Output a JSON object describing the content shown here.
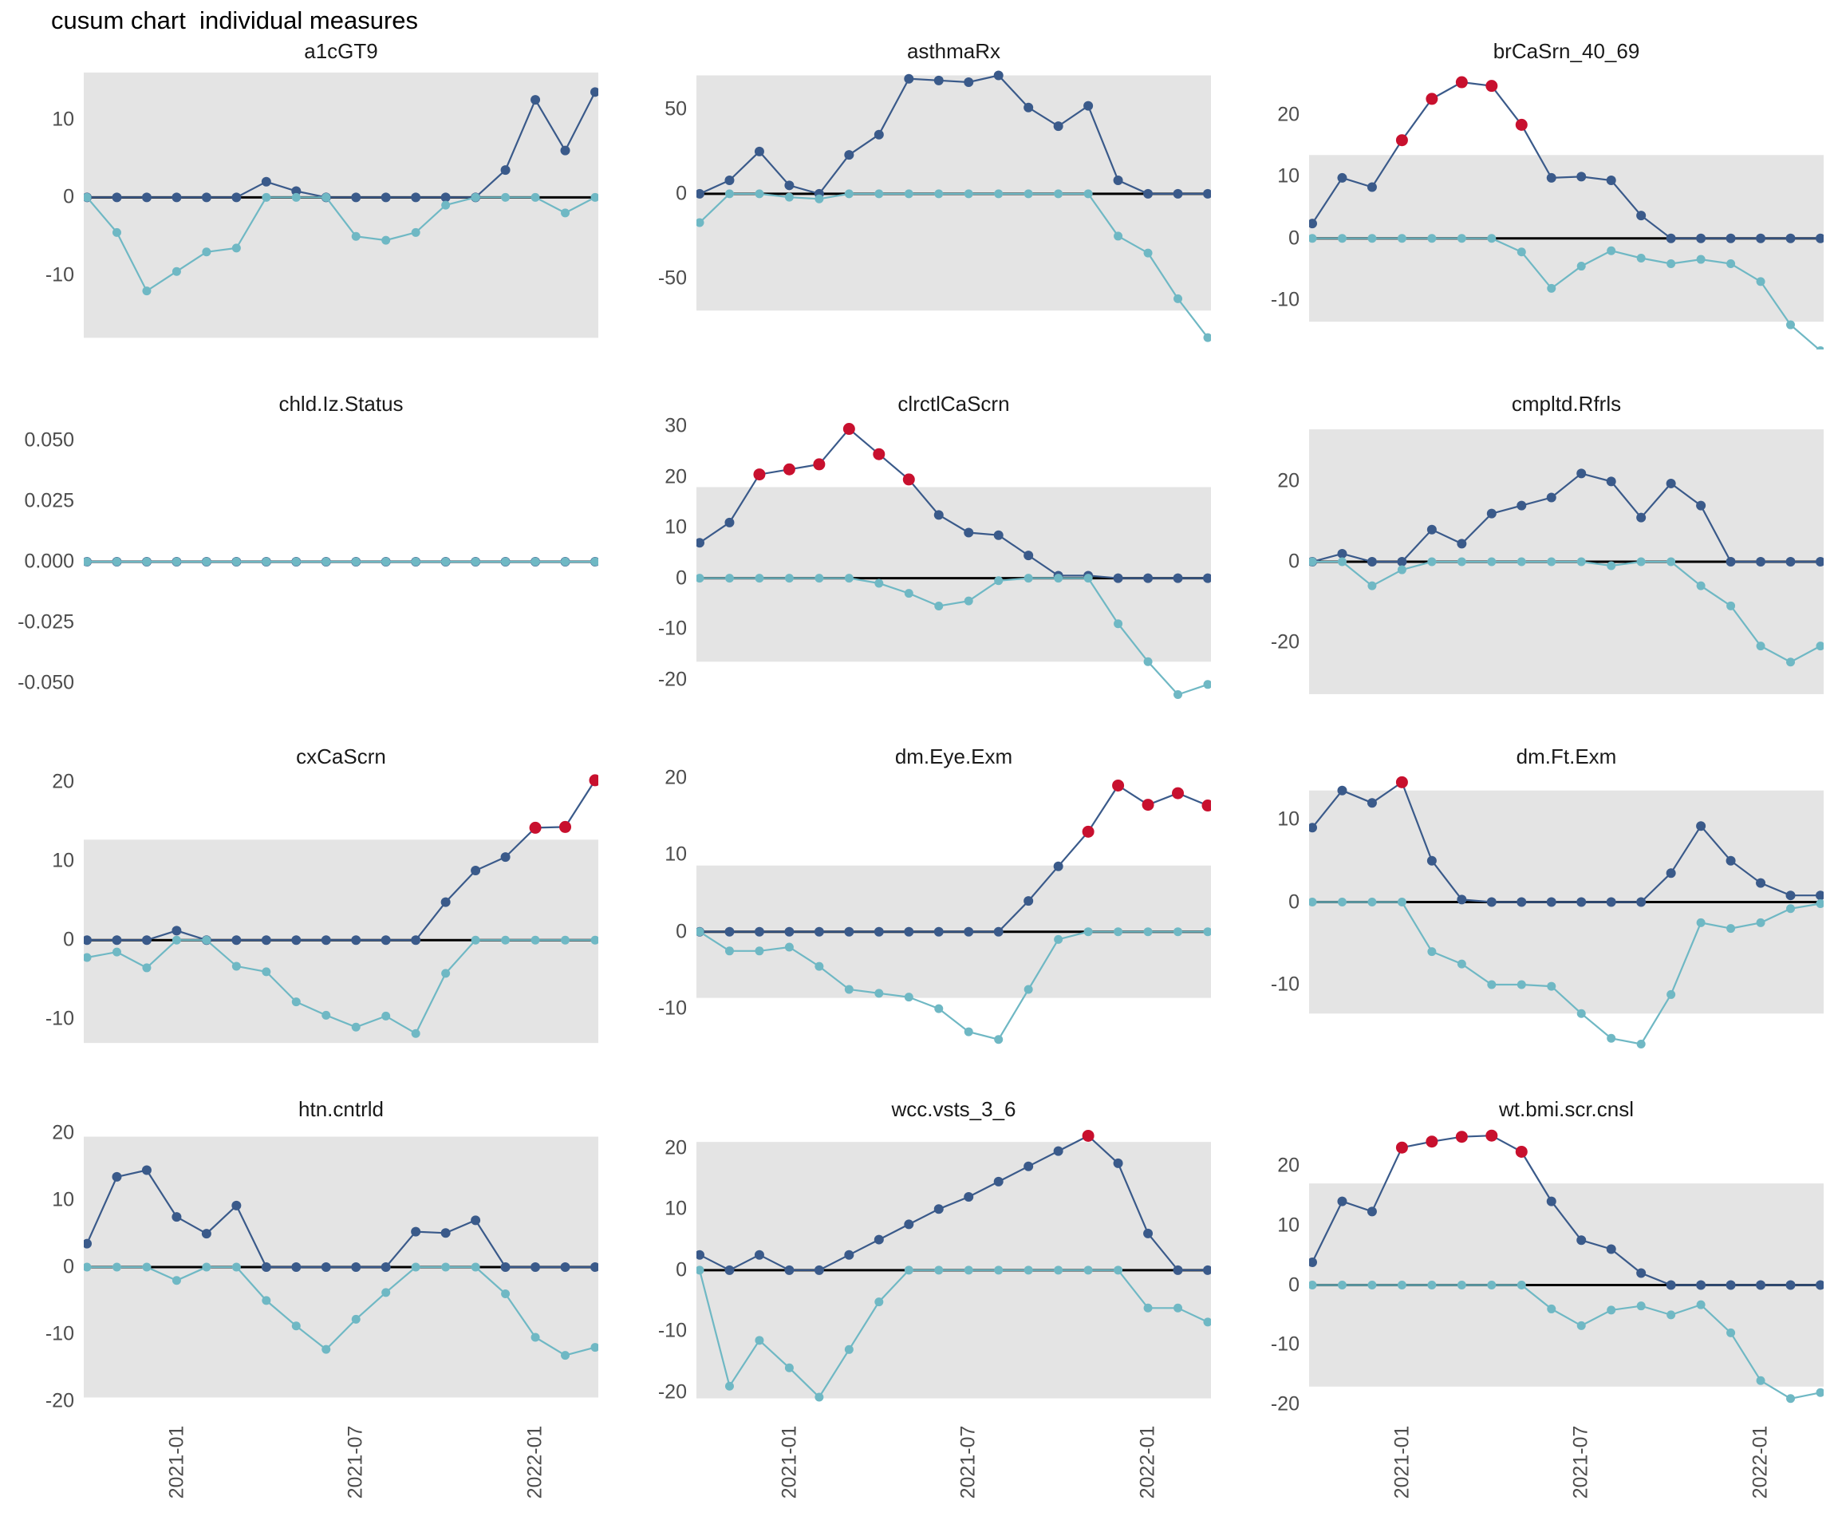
{
  "title": "cusum chart  individual measures",
  "colors": {
    "pos_line": "#3a5a8a",
    "neg_line": "#6fb8c4",
    "signal": "#c8102e",
    "band": "#e4e4e4",
    "zero_line": "#000000",
    "tick_label": "#4d4d4d",
    "facet_title": "#1a1a1a"
  },
  "x_axis": {
    "tick_labels": [
      "2021-01",
      "2021-07",
      "2022-01"
    ],
    "tick_indices": [
      3,
      9,
      15
    ]
  },
  "chart_data": {
    "type": "line",
    "n_points": 18,
    "layout": "4 rows x 3 columns facet grid, x axis labels only on bottom row",
    "series_names": [
      "cusum positive deviations (navy)",
      "cusum negative deviations (teal)",
      "signal points (red)"
    ],
    "panels": [
      {
        "title": "a1cGT9",
        "y_tick_labels": [
          "10",
          "0",
          "-10"
        ],
        "ylim": [
          -19.5,
          16.5
        ],
        "band": [
          -18,
          16
        ],
        "pos": [
          0,
          0,
          0,
          0,
          0,
          0,
          2,
          0.8,
          0,
          0,
          0,
          0,
          0,
          0,
          3.5,
          12.5,
          6,
          13.5
        ],
        "neg": [
          0,
          -4.5,
          -12,
          -9.5,
          -7,
          -6.5,
          0,
          0,
          0,
          -5,
          -5.5,
          -4.5,
          -1,
          0,
          0,
          0,
          -2,
          0
        ],
        "signals": []
      },
      {
        "title": "asthmaRx",
        "y_tick_labels": [
          "50",
          "0",
          "-50"
        ],
        "ylim": [
          -92,
          74
        ],
        "band": [
          -69,
          70
        ],
        "pos": [
          0,
          8,
          25,
          5,
          0,
          23,
          35,
          68,
          67,
          66,
          70,
          51,
          40,
          52,
          8,
          0,
          0,
          0
        ],
        "neg": [
          -17,
          0,
          0,
          -2,
          -3,
          0,
          0,
          0,
          0,
          0,
          0,
          0,
          0,
          0,
          -25,
          -35,
          -62,
          -85
        ],
        "signals": []
      },
      {
        "title": "brCaSrn_40_69",
        "y_tick_labels": [
          "20",
          "10",
          "0",
          "-10"
        ],
        "ylim": [
          -18,
          27.5
        ],
        "band": [
          -13.5,
          13.5
        ],
        "pos": [
          2.4,
          9.8,
          8.3,
          15.9,
          22.6,
          25.3,
          24.7,
          18.4,
          9.8,
          10,
          9.4,
          3.7,
          0,
          0,
          0,
          0,
          0,
          0
        ],
        "neg": [
          0,
          0,
          0,
          0,
          0,
          0,
          0,
          -2.2,
          -8.1,
          -4.5,
          -2,
          -3.2,
          -4.1,
          -3.4,
          -4.1,
          -7,
          -14,
          -18.2
        ],
        "signals": [
          3,
          4,
          5,
          6,
          7
        ]
      },
      {
        "title": "chld.Iz.Status",
        "y_tick_labels": [
          "0.050",
          "0.025",
          "0.000",
          "-0.025",
          "-0.050"
        ],
        "ylim": [
          -0.058,
          0.058
        ],
        "band": null,
        "pos": [
          0,
          0,
          0,
          0,
          0,
          0,
          0,
          0,
          0,
          0,
          0,
          0,
          0,
          0,
          0,
          0,
          0,
          0
        ],
        "neg": [
          0,
          0,
          0,
          0,
          0,
          0,
          0,
          0,
          0,
          0,
          0,
          0,
          0,
          0,
          0,
          0,
          0,
          0
        ],
        "signals": []
      },
      {
        "title": "clrctlCaScrn",
        "y_tick_labels": [
          "30",
          "20",
          "10",
          "0",
          "-10",
          "-20"
        ],
        "ylim": [
          -24.5,
          31
        ],
        "band": [
          -16.5,
          18
        ],
        "pos": [
          7,
          11,
          20.5,
          21.5,
          22.5,
          29.5,
          24.5,
          19.5,
          12.5,
          9,
          8.5,
          4.5,
          0.5,
          0.5,
          0,
          0,
          0,
          0
        ],
        "neg": [
          0,
          0,
          0,
          0,
          0,
          0,
          -1,
          -3,
          -5.5,
          -4.5,
          -0.5,
          0,
          0,
          0,
          -9,
          -16.5,
          -23,
          -21
        ],
        "signals": [
          2,
          3,
          4,
          5,
          6,
          7
        ]
      },
      {
        "title": "cmpltd.Rfrls",
        "y_tick_labels": [
          "20",
          "0",
          "-20"
        ],
        "ylim": [
          -35,
          35
        ],
        "band": [
          -33,
          33
        ],
        "pos": [
          0,
          2,
          0,
          0,
          8,
          4.5,
          12,
          14,
          16,
          22,
          20,
          11,
          19.5,
          14,
          0,
          0,
          0,
          0
        ],
        "neg": [
          0,
          0,
          -6,
          -2,
          0,
          0,
          0,
          0,
          0,
          0,
          -1,
          0,
          0,
          -6,
          -11,
          -21,
          -25,
          -21
        ],
        "signals": []
      },
      {
        "title": "cxCaScrn",
        "y_tick_labels": [
          "20",
          "10",
          "0",
          "-10"
        ],
        "ylim": [
          -14.5,
          21
        ],
        "band": [
          -13,
          12.7
        ],
        "pos": [
          0,
          0,
          0,
          1.2,
          0,
          0,
          0,
          0,
          0,
          0,
          0,
          0,
          4.8,
          8.8,
          10.5,
          14.2,
          14.3,
          20.2
        ],
        "neg": [
          -2.2,
          -1.5,
          -3.5,
          0,
          0,
          -3.3,
          -4,
          -7.8,
          -9.5,
          -11,
          -9.6,
          -11.8,
          -4.2,
          0,
          0,
          0,
          0,
          0
        ],
        "signals": [
          15,
          16,
          17
        ]
      },
      {
        "title": "dm.Eye.Exm",
        "y_tick_labels": [
          "20",
          "10",
          "0",
          "-10"
        ],
        "ylim": [
          -16,
          20.5
        ],
        "band": [
          -8.6,
          8.6
        ],
        "pos": [
          0,
          0,
          0,
          0,
          0,
          0,
          0,
          0,
          0,
          0,
          0,
          4,
          8.5,
          13,
          19,
          16.5,
          18,
          16.4
        ],
        "neg": [
          0,
          -2.5,
          -2.5,
          -2,
          -4.5,
          -7.5,
          -8,
          -8.5,
          -10,
          -13,
          -14,
          -7.5,
          -1,
          0,
          0,
          0,
          0,
          0
        ],
        "signals": [
          13,
          14,
          15,
          16,
          17
        ]
      },
      {
        "title": "dm.Ft.Exm",
        "y_tick_labels": [
          "10",
          "0",
          "-10"
        ],
        "ylim": [
          -18.5,
          15.5
        ],
        "band": [
          -13.5,
          13.5
        ],
        "pos": [
          9,
          13.5,
          12,
          14.5,
          5,
          0.3,
          0,
          0,
          0,
          0,
          0,
          0,
          3.5,
          9.2,
          5,
          2.3,
          0.8,
          0.8
        ],
        "neg": [
          0,
          0,
          0,
          0,
          -6,
          -7.5,
          -10,
          -10,
          -10.2,
          -13.5,
          -16.5,
          -17.2,
          -11.2,
          -2.5,
          -3.2,
          -2.5,
          -0.8,
          -0.2
        ],
        "signals": [
          3
        ]
      },
      {
        "title": "htn.cntrld",
        "y_tick_labels": [
          "20",
          "10",
          "0",
          "-10",
          "-20"
        ],
        "ylim": [
          -21,
          21
        ],
        "band": [
          -19.5,
          19.5
        ],
        "pos": [
          3.5,
          13.5,
          14.5,
          7.5,
          5,
          9.2,
          0,
          0,
          0,
          0,
          0,
          5.3,
          5.1,
          7,
          0,
          0,
          0,
          0
        ],
        "neg": [
          0,
          0,
          0,
          -2,
          0,
          0,
          -5,
          -8.8,
          -12.3,
          -7.8,
          -3.8,
          0,
          0,
          0,
          -4,
          -10.5,
          -13.2,
          -12
        ],
        "signals": []
      },
      {
        "title": "wcc.vsts_3_6",
        "y_tick_labels": [
          "20",
          "10",
          "0",
          "-10",
          "-20"
        ],
        "ylim": [
          -22.5,
          23.5
        ],
        "band": [
          -21,
          21
        ],
        "pos": [
          2.5,
          0,
          2.5,
          0,
          0,
          2.5,
          5,
          7.5,
          10,
          12,
          14.5,
          17,
          19.5,
          22,
          17.5,
          6,
          0,
          0
        ],
        "neg": [
          0,
          -19,
          -11.5,
          -16,
          -20.8,
          -13,
          -5.2,
          0,
          0,
          0,
          0,
          0,
          0,
          0,
          0,
          -6.2,
          -6.2,
          -8.5
        ],
        "signals": [
          13
        ]
      },
      {
        "title": "wt.bmi.scr.cnsl",
        "y_tick_labels": [
          "20",
          "10",
          "0",
          "-10",
          "-20"
        ],
        "ylim": [
          -20.5,
          26.5
        ],
        "band": [
          -17,
          17
        ],
        "pos": [
          3.8,
          14,
          12.3,
          23,
          24,
          24.8,
          25,
          22.3,
          14,
          7.5,
          6,
          2,
          0,
          0,
          0,
          0,
          0,
          0
        ],
        "neg": [
          0,
          0,
          0,
          0,
          0,
          0,
          0,
          0,
          -4,
          -6.8,
          -4.2,
          -3.5,
          -5,
          -3.3,
          -8,
          -16,
          -19,
          -18
        ],
        "signals": [
          3,
          4,
          5,
          6,
          7
        ]
      }
    ]
  }
}
